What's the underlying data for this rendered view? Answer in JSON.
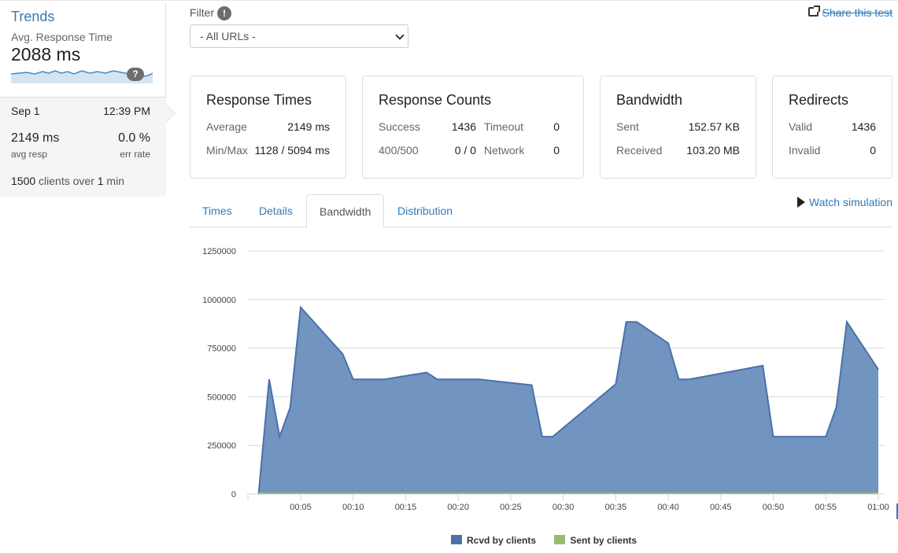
{
  "sidebar": {
    "title": "Trends",
    "avg_label": "Avg. Response Time",
    "avg_value": "2088 ms",
    "help": "?",
    "run": {
      "date": "Sep 1",
      "time": "12:39 PM",
      "resp": "2149 ms",
      "resp_label": "avg resp",
      "err": "0.0 %",
      "err_label": "err rate",
      "clients_num": "1500",
      "clients_mid": " clients over ",
      "clients_dur": "1",
      "clients_end": " min"
    }
  },
  "filter": {
    "label": "Filter",
    "help": "!",
    "selected": "- All URLs -"
  },
  "share": {
    "label": "Share this test"
  },
  "cards": {
    "response_times": {
      "title": "Response Times",
      "average_label": "Average",
      "average_value": "2149 ms",
      "minmax_label": "Min/Max",
      "minmax_value": "1128 / 5094 ms"
    },
    "response_counts": {
      "title": "Response Counts",
      "success_label": "Success",
      "success_value": "1436",
      "timeout_label": "Timeout",
      "timeout_value": "0",
      "err_label": "400/500",
      "err_value": "0 / 0",
      "network_label": "Network",
      "network_value": "0"
    },
    "bandwidth": {
      "title": "Bandwidth",
      "sent_label": "Sent",
      "sent_value": "152.57 KB",
      "received_label": "Received",
      "received_value": "103.20 MB"
    },
    "redirects": {
      "title": "Redirects",
      "valid_label": "Valid",
      "valid_value": "1436",
      "invalid_label": "Invalid",
      "invalid_value": "0"
    }
  },
  "tabs": [
    {
      "label": "Times"
    },
    {
      "label": "Details"
    },
    {
      "label": "Bandwidth"
    },
    {
      "label": "Distribution"
    }
  ],
  "watch": {
    "label": "Watch simulation"
  },
  "colors": {
    "rcvd": "#4a72a8",
    "rcvd_fill": "#7194c0",
    "sent": "#9bbb6b",
    "link": "#337ab7"
  },
  "chart_data": {
    "type": "area",
    "yticks": [
      "0",
      "250000",
      "500000",
      "750000",
      "1000000",
      "1250000"
    ],
    "ylim": [
      0,
      1250000
    ],
    "xticks": [
      "00:05",
      "00:10",
      "00:15",
      "00:20",
      "00:25",
      "00:30",
      "00:35",
      "00:40",
      "00:45",
      "00:50",
      "00:55",
      "01:00"
    ],
    "xlim_seconds": [
      0,
      60
    ],
    "series": [
      {
        "name": "Rcvd by clients",
        "x": [
          1,
          2,
          3,
          4,
          5,
          9,
          10,
          13,
          17,
          18,
          22,
          27,
          28,
          29,
          35,
          36,
          37,
          40,
          41,
          42,
          49,
          50,
          51,
          55,
          56,
          57,
          60
        ],
        "values": [
          0,
          590000,
          295000,
          445000,
          960000,
          720000,
          590000,
          590000,
          625000,
          590000,
          590000,
          560000,
          295000,
          295000,
          565000,
          885000,
          885000,
          775000,
          590000,
          590000,
          660000,
          295000,
          295000,
          295000,
          445000,
          885000,
          640000
        ]
      },
      {
        "name": "Sent by clients",
        "x": [
          1,
          60
        ],
        "values": [
          0,
          0
        ]
      }
    ]
  }
}
